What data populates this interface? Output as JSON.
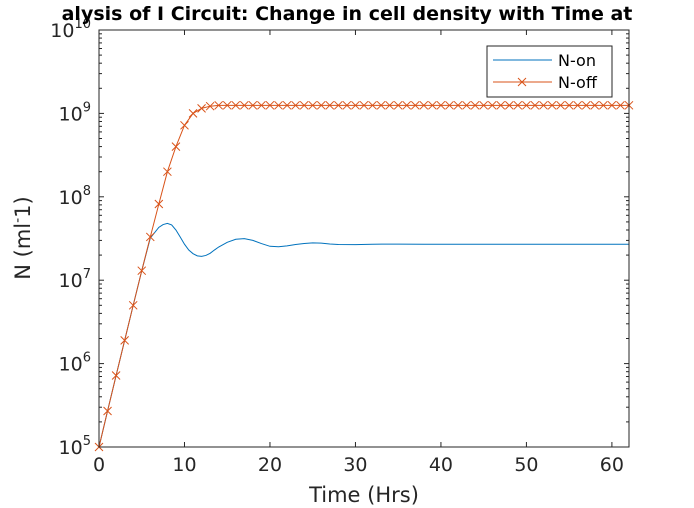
{
  "chart_data": {
    "type": "line",
    "title": "alysis of I Circuit: Change in cell density with Time at",
    "xlabel": "Time (Hrs)",
    "ylabel": "N (ml^-1)",
    "ylabel_parts": [
      "N (ml",
      "-",
      "1)"
    ],
    "xlim": [
      0,
      62
    ],
    "ylim": [
      100000,
      10000000000
    ],
    "yscale": "log",
    "grid": false,
    "legend_position": "top-right",
    "x_ticks": [
      "0",
      "10",
      "20",
      "30",
      "40",
      "50",
      "60"
    ],
    "y_ticks": [
      {
        "base": "10",
        "exp": "5"
      },
      {
        "base": "10",
        "exp": "6"
      },
      {
        "base": "10",
        "exp": "7"
      },
      {
        "base": "10",
        "exp": "8"
      },
      {
        "base": "10",
        "exp": "9"
      },
      {
        "base": "10",
        "exp": "10"
      }
    ],
    "series": [
      {
        "name": "N-on",
        "color": "#0072BD",
        "marker": "none",
        "x": [
          0,
          1,
          2,
          3,
          4,
          5,
          6,
          7,
          7.5,
          8,
          8.5,
          9,
          9.5,
          10,
          10.5,
          11,
          11.5,
          12,
          12.5,
          13,
          13.5,
          14,
          15,
          16,
          17,
          18,
          19,
          20,
          21,
          22,
          23,
          24,
          25,
          26,
          27,
          28,
          30,
          32,
          35,
          38,
          40,
          45,
          50,
          55,
          62
        ],
        "y": [
          100000,
          270000,
          720000,
          1900000,
          5000000,
          13000000,
          32000000,
          43000000,
          46500000,
          48000000,
          46000000,
          40000000,
          33000000,
          27000000,
          23000000,
          20800000,
          19600000,
          19300000,
          19800000,
          21000000,
          23000000,
          25000000,
          28500000,
          31000000,
          31500000,
          30000000,
          27500000,
          25500000,
          25200000,
          25800000,
          26800000,
          27500000,
          28000000,
          27800000,
          27200000,
          26800000,
          26700000,
          27000000,
          27100000,
          27000000,
          27000000,
          27000000,
          27000000,
          27000000,
          27000000
        ]
      },
      {
        "name": "N-off",
        "color": "#D95319",
        "marker": "x",
        "x": [
          0,
          1,
          2,
          3,
          4,
          5,
          6,
          7,
          8,
          9,
          10,
          11,
          12,
          13,
          14,
          15,
          16,
          17,
          18,
          19,
          20,
          21,
          22,
          23,
          24,
          25,
          26,
          27,
          28,
          29,
          30,
          31,
          32,
          33,
          34,
          35,
          36,
          37,
          38,
          39,
          40,
          41,
          42,
          43,
          44,
          45,
          46,
          47,
          48,
          49,
          50,
          51,
          52,
          53,
          54,
          55,
          56,
          57,
          58,
          59,
          60,
          61,
          62
        ],
        "y": [
          100000,
          270000,
          720000,
          1900000,
          5000000,
          13000000,
          33000000,
          82000000,
          200000000,
          400000000,
          720000000,
          1000000000,
          1150000000,
          1220000000,
          1250000000,
          1250000000,
          1250000000,
          1250000000,
          1250000000,
          1250000000,
          1250000000,
          1250000000,
          1250000000,
          1250000000,
          1250000000,
          1250000000,
          1250000000,
          1250000000,
          1250000000,
          1250000000,
          1250000000,
          1250000000,
          1250000000,
          1250000000,
          1250000000,
          1250000000,
          1250000000,
          1250000000,
          1250000000,
          1250000000,
          1250000000,
          1250000000,
          1250000000,
          1250000000,
          1250000000,
          1250000000,
          1250000000,
          1250000000,
          1250000000,
          1250000000,
          1250000000,
          1250000000,
          1250000000,
          1250000000,
          1250000000,
          1250000000,
          1250000000,
          1250000000,
          1250000000,
          1250000000,
          1250000000,
          1250000000,
          1250000000
        ]
      }
    ]
  }
}
